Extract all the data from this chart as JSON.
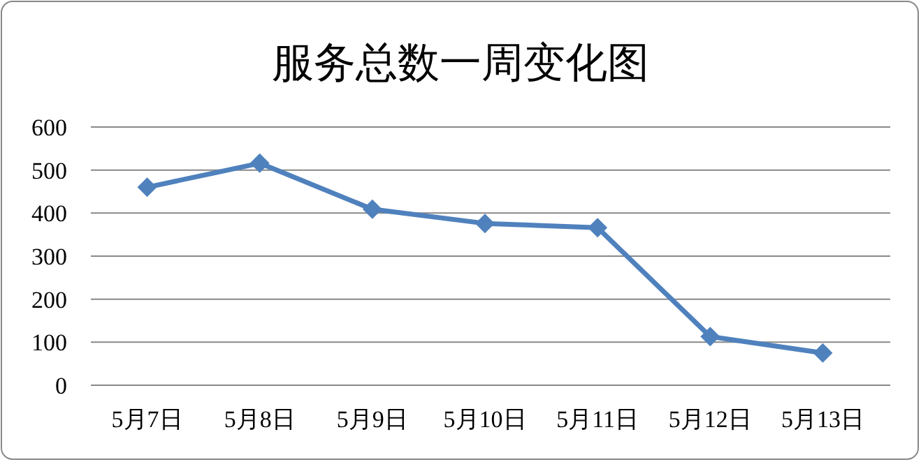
{
  "chart_data": {
    "type": "line",
    "title": "服务总数一周变化图",
    "categories": [
      "5月7日",
      "5月8日",
      "5月9日",
      "5月10日",
      "5月11日",
      "5月12日",
      "5月13日"
    ],
    "series": [
      {
        "color": "#4f81bd",
        "values": [
          460,
          516,
          409,
          376,
          366,
          113,
          75
        ]
      }
    ],
    "ylim": [
      0,
      600
    ],
    "yticks": [
      0,
      100,
      200,
      300,
      400,
      500,
      600
    ],
    "grid": "y",
    "marker": "diamond",
    "line_style": "solid"
  }
}
